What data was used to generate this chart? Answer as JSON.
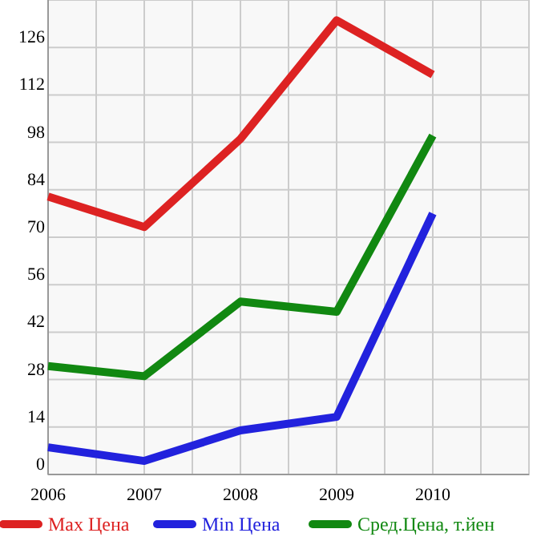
{
  "chart_data": {
    "type": "line",
    "x": [
      2006,
      2007,
      2008,
      2009,
      2010
    ],
    "xlim": [
      2006,
      2011
    ],
    "xticks": [
      2006,
      {
        "value": 2006.5,
        "label": null
      },
      2007,
      {
        "value": 2007.5,
        "label": null
      },
      2008,
      {
        "value": 2008.5,
        "label": null
      },
      2009,
      {
        "value": 2009.5,
        "label": null
      },
      2010,
      {
        "value": 2010.5,
        "label": null
      },
      {
        "value": 2011,
        "label": null
      }
    ],
    "ylim": [
      0,
      140
    ],
    "yticks": [
      0,
      14,
      28,
      42,
      56,
      70,
      84,
      98,
      112,
      126,
      {
        "value": 140,
        "label": null
      }
    ],
    "grid": true,
    "legend": "bottom",
    "marker": "none",
    "line_style": "solid",
    "series": [
      {
        "name": "Max Цена",
        "color": "#dd2222",
        "values": [
          82,
          73,
          99,
          134,
          118
        ]
      },
      {
        "name": "Min Цена",
        "color": "#2222dd",
        "values": [
          8,
          4,
          13,
          17,
          77
        ]
      },
      {
        "name": "Сред.Цена, т.йен",
        "color": "#118811",
        "values": [
          32,
          29,
          51,
          48,
          100
        ]
      }
    ]
  }
}
